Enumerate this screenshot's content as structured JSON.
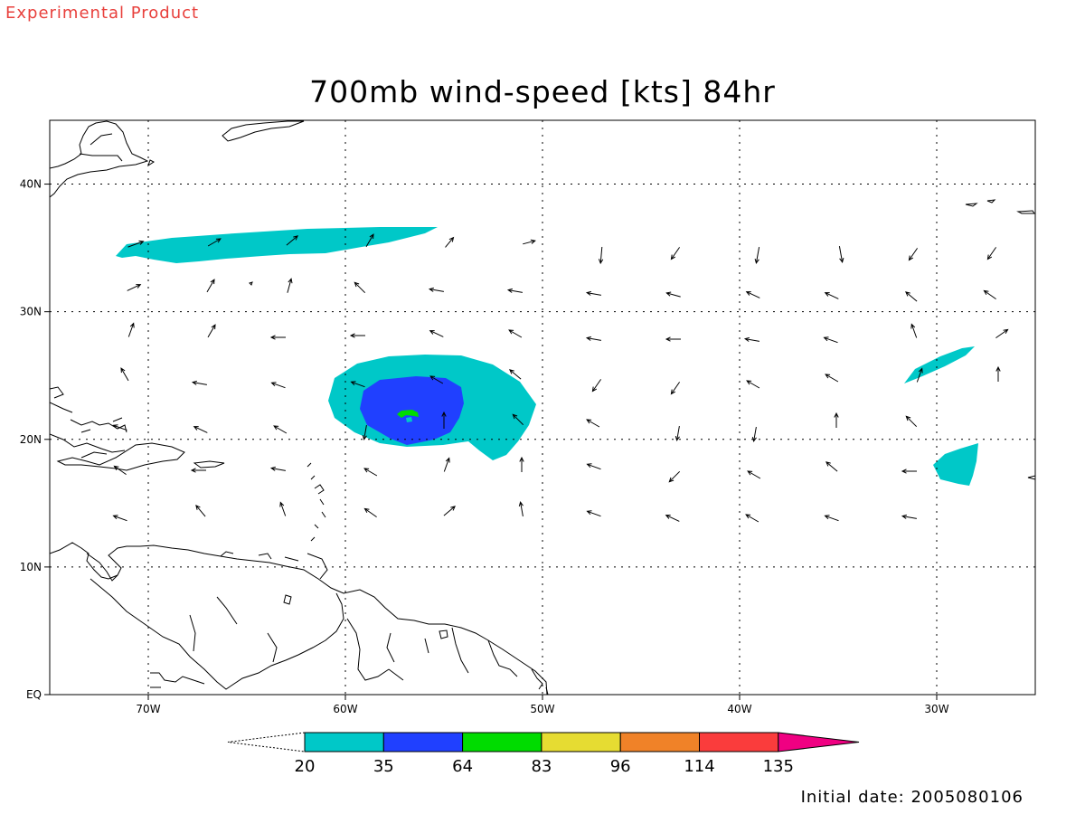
{
  "header": {
    "product_label": "Experimental Product",
    "title": "700mb wind-speed [kts] 84hr"
  },
  "footer": {
    "initial_date": "Initial date: 2005080106"
  },
  "map": {
    "lon_range": [
      -75,
      -25
    ],
    "lat_range": [
      0,
      45
    ],
    "lon_ticks": [
      {
        "value": -70,
        "label": "70W"
      },
      {
        "value": -60,
        "label": "60W"
      },
      {
        "value": -50,
        "label": "50W"
      },
      {
        "value": -40,
        "label": "40W"
      },
      {
        "value": -30,
        "label": "30W"
      }
    ],
    "lat_ticks": [
      {
        "value": 0,
        "label": "EQ"
      },
      {
        "value": 10,
        "label": "10N"
      },
      {
        "value": 20,
        "label": "20N"
      },
      {
        "value": 30,
        "label": "30N"
      },
      {
        "value": 40,
        "label": "40N"
      }
    ],
    "grid": "dotted"
  },
  "colorbar": {
    "levels": [
      "20",
      "35",
      "64",
      "83",
      "96",
      "114",
      "135"
    ],
    "colors": [
      "#00c8c8",
      "#2040ff",
      "#00dc00",
      "#e6dc32",
      "#f08228",
      "#fa3c3c",
      "#f00082"
    ],
    "below_color": "#ffffff"
  },
  "colors": {
    "cyan": "#00c8c8",
    "blue": "#2040ff",
    "green": "#00dc00",
    "title": "#000000",
    "label": "#e8403c"
  }
}
